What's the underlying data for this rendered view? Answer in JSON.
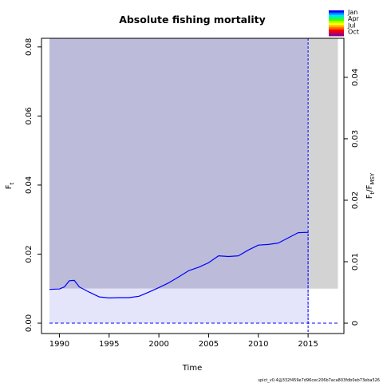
{
  "chart_data": {
    "type": "line",
    "title": "Absolute fishing mortality",
    "xlabel": "Time",
    "ylabel": {
      "main": "F",
      "sub": "t"
    },
    "ylabel_right": {
      "main": "F",
      "sub": "t",
      "sep": "/F",
      "sub2": "MSY"
    },
    "xlim": [
      1988.2,
      2018.6
    ],
    "ylim": [
      -0.003,
      0.0825
    ],
    "x_ticks": [
      1990,
      1995,
      2000,
      2005,
      2010,
      2015
    ],
    "y_ticks": [
      0.0,
      0.02,
      0.04,
      0.06,
      0.08
    ],
    "y_tick_labels": [
      "0.00",
      "0.02",
      "0.04",
      "0.06",
      "0.08"
    ],
    "y2_ticks": [
      0,
      0.01,
      0.02,
      0.03,
      0.04
    ],
    "y2_tick_labels": [
      "0",
      "0.01",
      "0.02",
      "0.03",
      "0.04"
    ],
    "y2_scale": 1.78,
    "grid": false,
    "region_upper": {
      "x0": 1989,
      "x1": 2015,
      "y0": 0.01,
      "y1": 0.0825,
      "color": "#bcbcda"
    },
    "region_lower": {
      "x0": 1989,
      "x1": 2015,
      "y0": 0.0,
      "y1": 0.01,
      "color": "#e4e4fa"
    },
    "prediction_region": {
      "x0": 2015,
      "x1": 2018,
      "y0": 0.01,
      "y1": 0.0825,
      "color": "#d3d3d3"
    },
    "vline_x": 2015,
    "series": [
      {
        "name": "",
        "color": "#0000ff",
        "x": [
          1989,
          1990,
          1990.5,
          1991,
          1991.5,
          1992,
          1993,
          1994,
          1995,
          1996,
          1997,
          1998,
          1999,
          2000,
          2001,
          2002,
          2003,
          2004,
          2005,
          2006,
          2007,
          2008,
          2009,
          2010,
          2011,
          2012,
          2013,
          2014,
          2015
        ],
        "y": [
          0.0098,
          0.0099,
          0.0105,
          0.0123,
          0.0124,
          0.0105,
          0.009,
          0.0076,
          0.0073,
          0.0074,
          0.0074,
          0.0078,
          0.009,
          0.0103,
          0.0117,
          0.0134,
          0.0152,
          0.0162,
          0.0175,
          0.0195,
          0.0193,
          0.0195,
          0.0212,
          0.0226,
          0.0228,
          0.0232,
          0.0247,
          0.0262,
          0.0263
        ]
      }
    ],
    "zero_line": {
      "x0": 1989,
      "x1": 2018,
      "y": 0.0,
      "color": "#0000ff"
    },
    "legend": {
      "position": "top-right",
      "labels": [
        "Jan",
        "Apr",
        "Jul",
        "Oct"
      ],
      "colors": [
        "#0000ff",
        "#0080ff",
        "#00e0ff",
        "#00ff80",
        "#40ff00",
        "#c0ff00",
        "#ffff00",
        "#ffb000",
        "#ff6000",
        "#ff0000",
        "#d00040",
        "#900080"
      ]
    },
    "footer": "spict_v0.4@332f459e7d96cec206b7aca803fdb0eb73eba526"
  }
}
